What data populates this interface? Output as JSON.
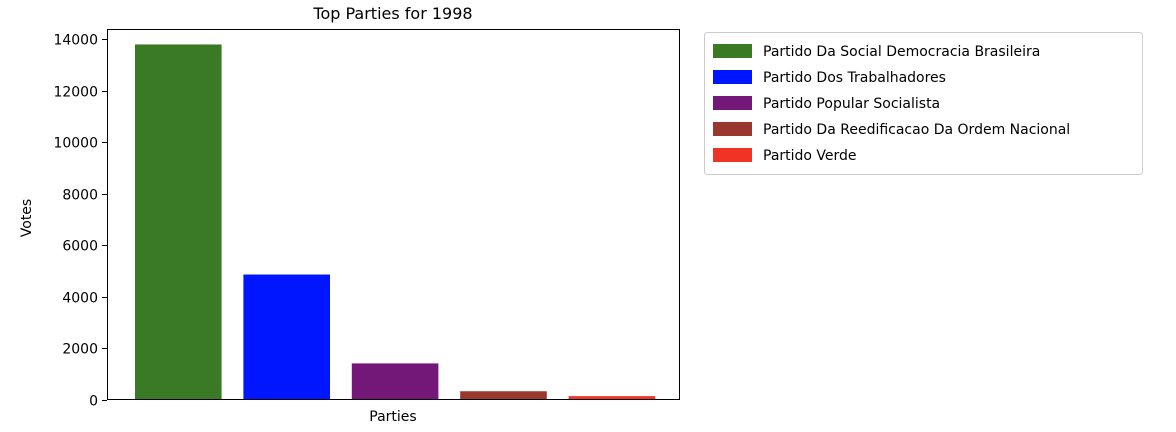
{
  "chart_data": {
    "type": "bar",
    "title": "Top Parties for 1998",
    "xlabel": "Parties",
    "ylabel": "Votes",
    "ylim": [
      0,
      14400
    ],
    "yticks": [
      0,
      2000,
      4000,
      6000,
      8000,
      10000,
      12000,
      14000
    ],
    "grid": false,
    "legend_position": "outside-right",
    "series": [
      {
        "name": "Partido Da Social Democracia Brasileira",
        "value": 13800,
        "color": "#3a7a24"
      },
      {
        "name": "Partido Dos Trabalhadores",
        "value": 4870,
        "color": "#0016ff"
      },
      {
        "name": "Partido Popular Socialista",
        "value": 1420,
        "color": "#731779"
      },
      {
        "name": "Partido Da Reedificacao Da Ordem Nacional",
        "value": 340,
        "color": "#9a3830"
      },
      {
        "name": "Partido Verde",
        "value": 150,
        "color": "#ef3325"
      }
    ]
  }
}
